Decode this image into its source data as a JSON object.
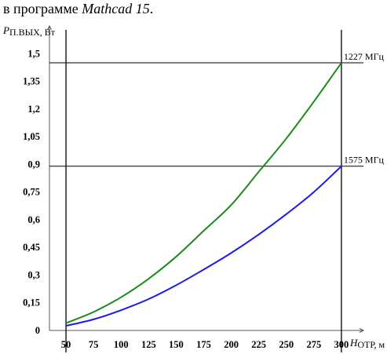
{
  "caption": {
    "prefix": "в программе ",
    "app": "Mathcad 15",
    "suffix": "."
  },
  "chart_data": {
    "type": "line",
    "title": "",
    "ylabel": {
      "symbol": "P",
      "sub": "П.ВЫХ, Вт"
    },
    "xlabel": {
      "symbol": "H",
      "sub": "ОТР, м"
    },
    "xlim": [
      35,
      320
    ],
    "ylim": [
      0,
      1.65
    ],
    "xticks": [
      50,
      75,
      100,
      125,
      150,
      175,
      200,
      225,
      250,
      275,
      300
    ],
    "yticks": [
      0,
      0.15,
      0.3,
      0.45,
      0.6,
      0.75,
      0.9,
      1.05,
      1.2,
      1.35,
      1.5
    ],
    "ytick_labels": [
      "0",
      "0,15",
      "0,3",
      "0,45",
      "0,6",
      "0,75",
      "0,9",
      "1,05",
      "1,2",
      "1,35",
      "1,5"
    ],
    "grid": false,
    "reference_lines": {
      "vertical_x": [
        50,
        300
      ],
      "horizontal_y": [
        1.45,
        0.89
      ]
    },
    "series": [
      {
        "name": "1227 МГц",
        "color": "#1a8a1a",
        "x": [
          50,
          75,
          100,
          125,
          150,
          175,
          200,
          225,
          250,
          275,
          300
        ],
        "values": [
          0.04,
          0.1,
          0.18,
          0.28,
          0.4,
          0.54,
          0.68,
          0.86,
          1.04,
          1.24,
          1.45
        ]
      },
      {
        "name": "1575 МГц",
        "color": "#1a1aee",
        "x": [
          50,
          75,
          100,
          125,
          150,
          175,
          200,
          225,
          250,
          275,
          300
        ],
        "values": [
          0.025,
          0.06,
          0.11,
          0.17,
          0.245,
          0.33,
          0.42,
          0.52,
          0.63,
          0.75,
          0.89
        ]
      }
    ]
  }
}
